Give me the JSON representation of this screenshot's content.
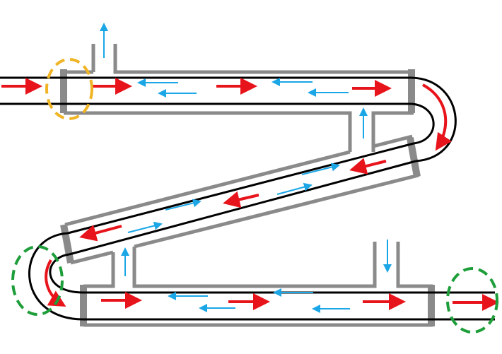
{
  "diagram": {
    "kind": "double-pipe-heat-exchanger-flow",
    "colors": {
      "background": "#ffffff",
      "outer_pipe": "#8a8a8a",
      "inner_tube": "#000000",
      "hot_flow_arrow": "#e8141b",
      "cold_flow_arrow": "#1ba6e6",
      "highlight_inlet": "#f0b425",
      "highlight_joint": "#1e9e3a"
    },
    "icons": {
      "hot_arrow": "arrow-right-red",
      "cold_arrow": "arrow-thin-blue",
      "highlight": "dashed-circle"
    }
  }
}
